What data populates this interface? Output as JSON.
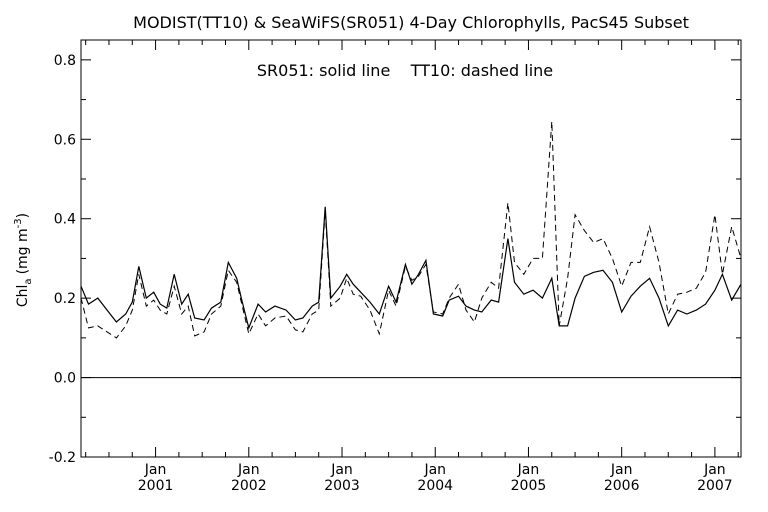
{
  "chart_data": {
    "type": "line",
    "title": "MODIST(TT10) & SeaWiFS(SR051) 4-Day Chlorophylls, PacS45 Subset",
    "annotation": "SR051: solid line    TT10: dashed line",
    "ylabel_main": "Chl",
    "ylabel_sub": "a",
    "ylabel_unit": "(mg m",
    "ylabel_exp": "-3",
    "ylabel_close": ")",
    "ylim": [
      -0.2,
      0.85
    ],
    "xlim": [
      2000.2,
      2007.28
    ],
    "yticks": [
      {
        "value": -0.2,
        "label": "-0.2"
      },
      {
        "value": 0.0,
        "label": "0.0"
      },
      {
        "value": 0.2,
        "label": "0.2"
      },
      {
        "value": 0.4,
        "label": "0.4"
      },
      {
        "value": 0.6,
        "label": "0.6"
      },
      {
        "value": 0.8,
        "label": "0.8"
      }
    ],
    "xticks": [
      {
        "value": 2001.0,
        "month": "Jan",
        "year": "2001"
      },
      {
        "value": 2002.0,
        "month": "Jan",
        "year": "2002"
      },
      {
        "value": 2003.0,
        "month": "Jan",
        "year": "2003"
      },
      {
        "value": 2004.0,
        "month": "Jan",
        "year": "2004"
      },
      {
        "value": 2005.0,
        "month": "Jan",
        "year": "2005"
      },
      {
        "value": 2006.0,
        "month": "Jan",
        "year": "2006"
      },
      {
        "value": 2007.0,
        "month": "Jan",
        "year": "2007"
      }
    ],
    "reference_line": 0.0,
    "series": [
      {
        "name": "SR051",
        "style": "solid",
        "color": "#000000",
        "x": [
          2000.2,
          2000.28,
          2000.38,
          2000.48,
          2000.58,
          2000.68,
          2000.75,
          2000.82,
          2000.9,
          2000.98,
          2001.05,
          2001.12,
          2001.2,
          2001.28,
          2001.35,
          2001.42,
          2001.52,
          2001.6,
          2001.7,
          2001.78,
          2001.87,
          2001.92,
          2002.0,
          2002.1,
          2002.18,
          2002.28,
          2002.4,
          2002.5,
          2002.58,
          2002.68,
          2002.75,
          2002.82,
          2002.88,
          2002.98,
          2003.05,
          2003.12,
          2003.2,
          2003.3,
          2003.4,
          2003.5,
          2003.58,
          2003.68,
          2003.75,
          2003.82,
          2003.9,
          2003.98,
          2004.08,
          2004.15,
          2004.25,
          2004.33,
          2004.42,
          2004.5,
          2004.6,
          2004.68,
          2004.78,
          2004.85,
          2004.95,
          2005.05,
          2005.15,
          2005.25,
          2005.33,
          2005.42,
          2005.5,
          2005.6,
          2005.7,
          2005.8,
          2005.9,
          2006.0,
          2006.1,
          2006.2,
          2006.3,
          2006.4,
          2006.5,
          2006.6,
          2006.7,
          2006.8,
          2006.9,
          2007.0,
          2007.08,
          2007.18,
          2007.28
        ],
        "y": [
          0.23,
          0.185,
          0.2,
          0.17,
          0.14,
          0.16,
          0.19,
          0.28,
          0.2,
          0.215,
          0.185,
          0.175,
          0.26,
          0.185,
          0.21,
          0.15,
          0.145,
          0.175,
          0.19,
          0.29,
          0.25,
          0.2,
          0.125,
          0.185,
          0.165,
          0.18,
          0.17,
          0.145,
          0.15,
          0.18,
          0.19,
          0.43,
          0.2,
          0.23,
          0.26,
          0.235,
          0.215,
          0.19,
          0.16,
          0.23,
          0.19,
          0.285,
          0.235,
          0.26,
          0.295,
          0.16,
          0.155,
          0.195,
          0.205,
          0.18,
          0.17,
          0.165,
          0.195,
          0.19,
          0.35,
          0.24,
          0.21,
          0.22,
          0.2,
          0.25,
          0.13,
          0.13,
          0.2,
          0.255,
          0.265,
          0.27,
          0.24,
          0.165,
          0.205,
          0.23,
          0.25,
          0.2,
          0.13,
          0.17,
          0.16,
          0.17,
          0.185,
          0.22,
          0.26,
          0.195,
          0.235
        ],
        "y_tail": 0.2
      },
      {
        "name": "TT10",
        "style": "dashed",
        "color": "#000000",
        "x": [
          2000.2,
          2000.28,
          2000.38,
          2000.48,
          2000.58,
          2000.68,
          2000.75,
          2000.82,
          2000.9,
          2000.98,
          2001.05,
          2001.12,
          2001.2,
          2001.28,
          2001.35,
          2001.42,
          2001.52,
          2001.6,
          2001.7,
          2001.78,
          2001.87,
          2001.92,
          2002.0,
          2002.1,
          2002.18,
          2002.28,
          2002.4,
          2002.5,
          2002.58,
          2002.68,
          2002.75,
          2002.82,
          2002.88,
          2002.98,
          2003.05,
          2003.12,
          2003.2,
          2003.3,
          2003.4,
          2003.5,
          2003.58,
          2003.68,
          2003.75,
          2003.82,
          2003.9,
          2003.98,
          2004.08,
          2004.15,
          2004.25,
          2004.33,
          2004.42,
          2004.5,
          2004.6,
          2004.68,
          2004.78,
          2004.85,
          2004.95,
          2005.05,
          2005.15,
          2005.25,
          2005.33,
          2005.42,
          2005.5,
          2005.6,
          2005.7,
          2005.8,
          2005.9,
          2006.0,
          2006.1,
          2006.2,
          2006.3,
          2006.4,
          2006.5,
          2006.6,
          2006.7,
          2006.8,
          2006.9,
          2007.0,
          2007.08,
          2007.18,
          2007.28
        ],
        "y": [
          0.2,
          0.125,
          0.13,
          0.115,
          0.1,
          0.13,
          0.17,
          0.26,
          0.18,
          0.195,
          0.17,
          0.16,
          0.23,
          0.16,
          0.18,
          0.105,
          0.115,
          0.16,
          0.18,
          0.27,
          0.24,
          0.19,
          0.11,
          0.16,
          0.13,
          0.15,
          0.155,
          0.12,
          0.115,
          0.16,
          0.17,
          0.42,
          0.18,
          0.2,
          0.25,
          0.21,
          0.205,
          0.17,
          0.11,
          0.22,
          0.18,
          0.28,
          0.245,
          0.255,
          0.285,
          0.165,
          0.16,
          0.2,
          0.235,
          0.17,
          0.14,
          0.2,
          0.24,
          0.225,
          0.44,
          0.29,
          0.26,
          0.3,
          0.3,
          0.645,
          0.13,
          0.25,
          0.41,
          0.37,
          0.34,
          0.35,
          0.3,
          0.23,
          0.29,
          0.29,
          0.38,
          0.29,
          0.16,
          0.21,
          0.215,
          0.225,
          0.265,
          0.41,
          0.26,
          0.38,
          0.3
        ],
        "y_tail": 0.33
      }
    ]
  }
}
